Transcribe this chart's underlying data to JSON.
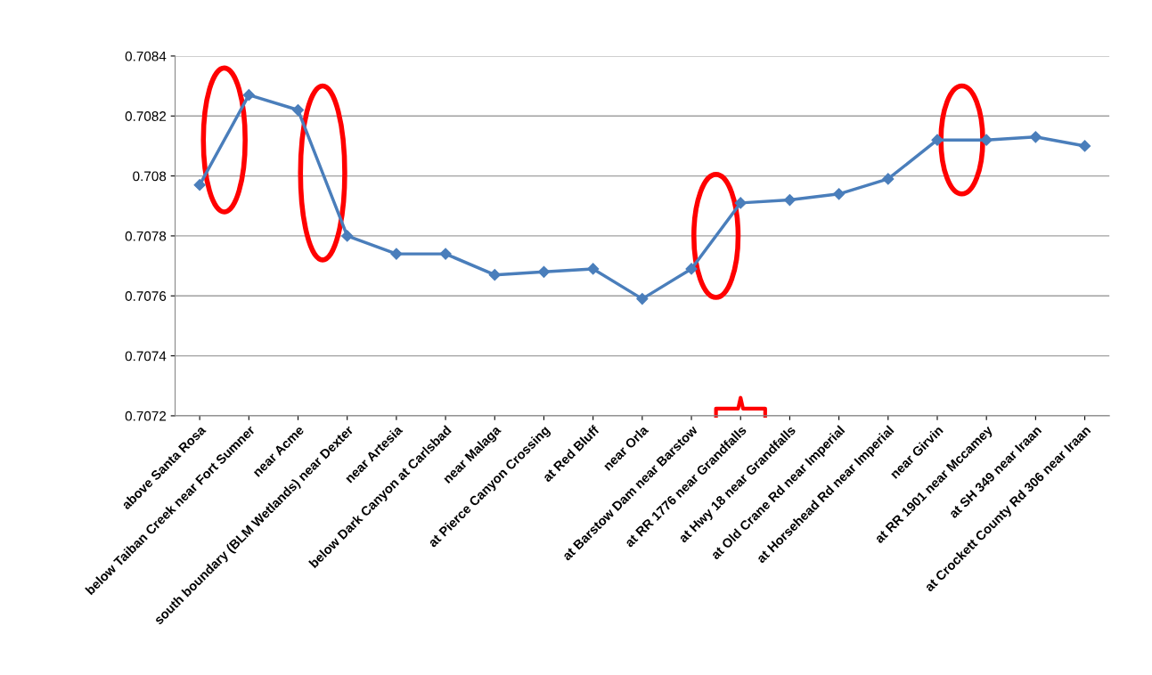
{
  "chart_data": {
    "type": "line",
    "categories": [
      "above Santa Rosa",
      "below Taiban Creek near Fort Sumner",
      "near Acme",
      "south boundary (BLM Wetlands) near Dexter",
      "near Artesia",
      "below Dark Canyon at Carlsbad",
      "near Malaga",
      "at Pierce Canyon Crossing",
      "at Red Bluff",
      "near Orla",
      "at Barstow Dam near Barstow",
      "at RR 1776 near Grandfalls",
      "at Hwy 18 near Grandfalls",
      "at Old Crane Rd near Imperial",
      "at Horsehead Rd near Imperial",
      "near Girvin",
      "at RR 1901 near Mccamey",
      "at SH 349 near Iraan",
      "at Crockett County Rd 306 near Iraan"
    ],
    "series": [
      {
        "color": "#4a7ebb",
        "values": [
          0.70797,
          0.70827,
          0.70822,
          0.7078,
          0.70774,
          0.70774,
          0.70767,
          0.70768,
          0.70769,
          0.70759,
          0.70769,
          0.70791,
          0.70792,
          0.70794,
          0.70799,
          0.70812,
          0.70812,
          0.70813,
          0.7081
        ]
      }
    ],
    "ylim": [
      0.7072,
      0.7084
    ],
    "yticks": [
      {
        "value": 0.7072,
        "label": "0.7072"
      },
      {
        "value": 0.7074,
        "label": "0.7074"
      },
      {
        "value": 0.7076,
        "label": "0.7076"
      },
      {
        "value": 0.7078,
        "label": "0.7078"
      },
      {
        "value": 0.708,
        "label": "0.708"
      },
      {
        "value": 0.7082,
        "label": "0.7082"
      },
      {
        "value": 0.7084,
        "label": "0.7084"
      }
    ],
    "grid": "y",
    "marker": "diamond",
    "line_style": "solid",
    "legend": false
  }
}
